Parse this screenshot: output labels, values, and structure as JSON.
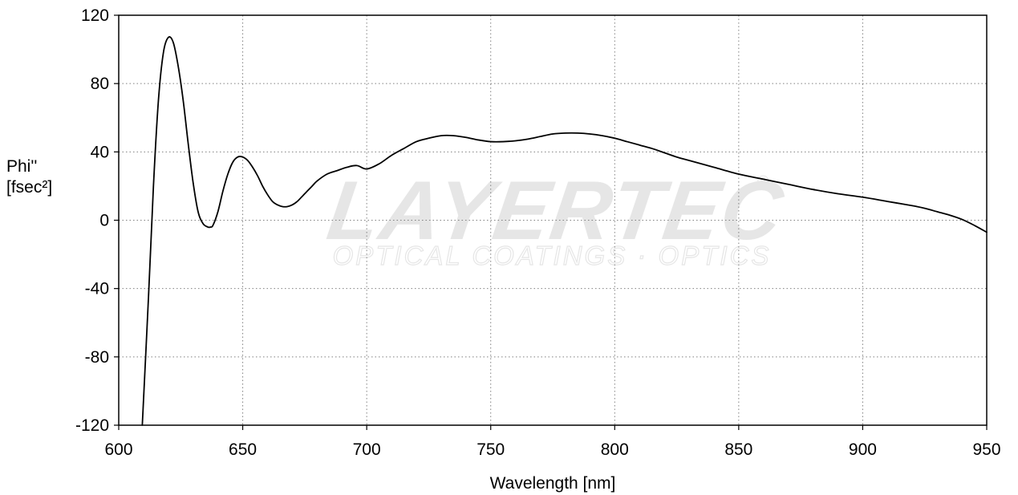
{
  "chart_data": {
    "type": "line",
    "xlabel": "Wavelength [nm]",
    "ylabel_line1": "Phi''",
    "ylabel_line2": "[fsec²]",
    "xlim": [
      600,
      950
    ],
    "ylim": [
      -120,
      120
    ],
    "xticks": [
      600,
      650,
      700,
      750,
      800,
      850,
      900,
      950
    ],
    "yticks": [
      -120,
      -80,
      -40,
      0,
      40,
      80,
      120
    ],
    "grid": true,
    "grid_style": "dotted",
    "line_color": "#000000",
    "watermark": {
      "logo_text": "LAYERTEC",
      "registered": "®",
      "tagline": "OPTICAL COATINGS · OPTICS"
    },
    "series": [
      {
        "x": [
          609.5,
          612,
          614,
          616,
          618,
          620,
          622,
          624,
          626,
          628,
          630,
          632,
          634,
          636,
          637,
          638,
          640,
          642,
          644,
          646,
          648,
          650,
          652,
          654,
          656,
          658,
          660,
          662,
          664,
          666,
          668,
          670,
          672,
          674,
          676,
          678,
          680,
          684,
          688,
          692,
          696,
          700,
          705,
          710,
          715,
          720,
          725,
          730,
          735,
          740,
          745,
          750,
          755,
          760,
          765,
          770,
          775,
          780,
          785,
          790,
          795,
          800,
          805,
          810,
          815,
          820,
          825,
          830,
          840,
          850,
          860,
          870,
          880,
          890,
          900,
          910,
          920,
          925,
          930,
          935,
          940,
          945,
          950
        ],
        "y": [
          -120,
          -45,
          20,
          70,
          98,
          107,
          104,
          90,
          70,
          45,
          22,
          5,
          -2,
          -4,
          -4,
          -3,
          5,
          17,
          27,
          34,
          37,
          37,
          35,
          31,
          26,
          20,
          15,
          11,
          9,
          8,
          8,
          9,
          11,
          14,
          17,
          20,
          23,
          27,
          29,
          31,
          32,
          30,
          33,
          38,
          42,
          46,
          48,
          49.5,
          49.5,
          48.5,
          47,
          46,
          46,
          46.5,
          47.5,
          49,
          50.5,
          51,
          51,
          50.5,
          49.5,
          48,
          46,
          44,
          42,
          39.5,
          37,
          35,
          31,
          27,
          24,
          21,
          18,
          15.5,
          13.5,
          11,
          8.5,
          7,
          5,
          3,
          0.5,
          -3,
          -7
        ]
      }
    ]
  }
}
